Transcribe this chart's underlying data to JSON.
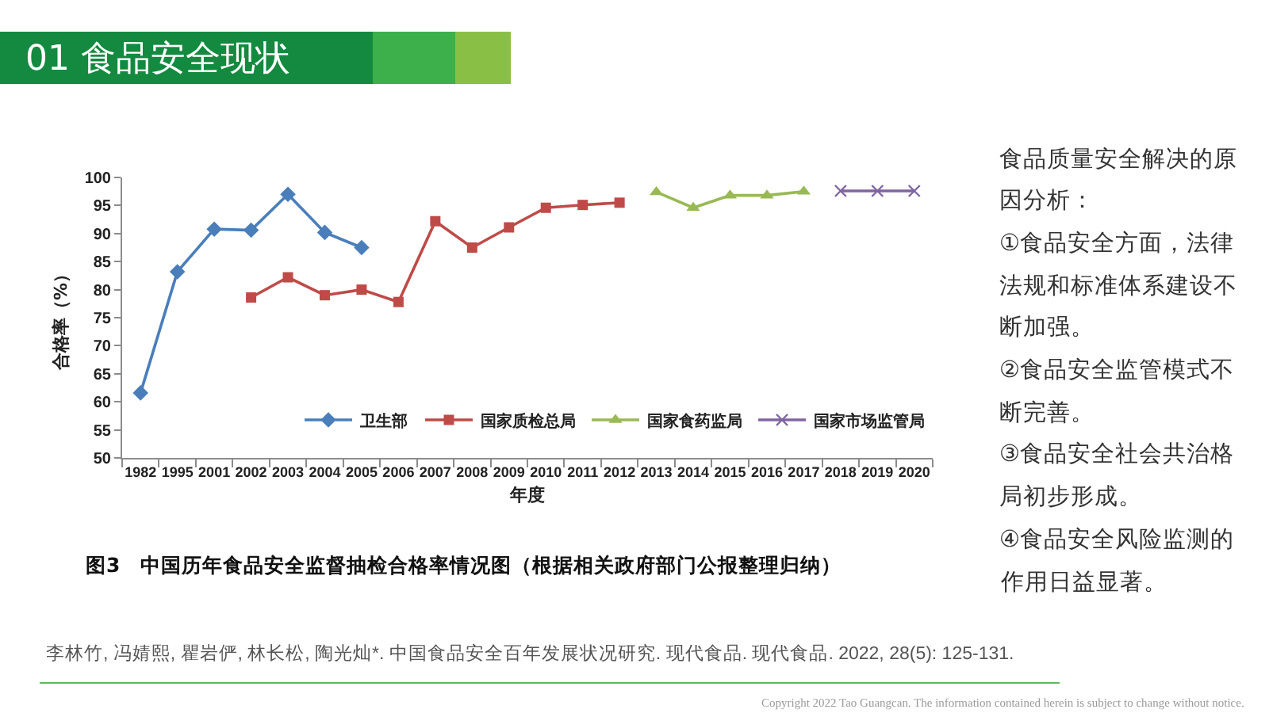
{
  "chart_data": {
    "type": "line",
    "title": "01 食品安全现状",
    "xlabel": "年度",
    "ylabel": "合格率（%）",
    "categories": [
      "1982",
      "1995",
      "2001",
      "2002",
      "2003",
      "2004",
      "2005",
      "2006",
      "2007",
      "2008",
      "2009",
      "2010",
      "2011",
      "2012",
      "2013",
      "2014",
      "2015",
      "2016",
      "2017",
      "2018",
      "2019",
      "2020"
    ],
    "series": [
      {
        "name": "卫生部",
        "color": "#4a7ebb",
        "marker": "diamond",
        "values": [
          61.6,
          83.2,
          90.8,
          90.6,
          97.0,
          90.2,
          87.5,
          null,
          null,
          null,
          null,
          null,
          null,
          null,
          null,
          null,
          null,
          null,
          null,
          null,
          null,
          null
        ]
      },
      {
        "name": "国家质检总局",
        "color": "#be4b48",
        "marker": "square",
        "values": [
          null,
          null,
          null,
          78.6,
          82.2,
          79.0,
          80.0,
          77.8,
          92.2,
          87.5,
          91.1,
          94.6,
          95.1,
          95.5,
          null,
          null,
          null,
          null,
          null,
          null,
          null,
          null
        ]
      },
      {
        "name": "国家食药监局",
        "color": "#98b954",
        "marker": "triangle",
        "values": [
          null,
          null,
          null,
          null,
          null,
          null,
          null,
          null,
          null,
          null,
          null,
          null,
          null,
          null,
          97.4,
          94.6,
          96.8,
          96.8,
          97.5,
          null,
          null,
          null
        ]
      },
      {
        "name": "国家市场监管局",
        "color": "#8064a2",
        "marker": "cross",
        "values": [
          null,
          null,
          null,
          null,
          null,
          null,
          null,
          null,
          null,
          null,
          null,
          null,
          null,
          null,
          null,
          null,
          null,
          null,
          null,
          97.6,
          97.6,
          97.6
        ]
      }
    ],
    "ylim": [
      50,
      100
    ],
    "yticks": [
      50,
      55,
      60,
      65,
      70,
      75,
      80,
      85,
      90,
      95,
      100
    ],
    "grid": false,
    "legend": "bottom right",
    "line_style": "solid",
    "annotations": [
      "图3　中国历年食品安全监督抽检合格率情况图（根据相关政府部门公报整理归纳）",
      "食品质量安全解决的原因分析：",
      "①食品安全方面，法律法规和标准体系建设不断加强。",
      "②食品安全监管模式不断完善。",
      "③食品安全社会共治格局初步形成。",
      "④食品安全风险监测的作用日益显著。",
      "李林竹, 冯婧熙, 瞿岩俨, 林长松, 陶光灿*. 中国食品安全百年发展状况研究. 现代食品. 现代食品. 2022, 28(5): 125-131.",
      "Copyright 2022 Tao Guangcan. The information contained herein is subject to change without notice."
    ]
  }
}
